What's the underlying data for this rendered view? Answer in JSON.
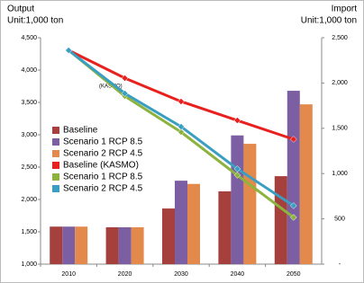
{
  "chart_data": {
    "type": "bar",
    "y_title": "Output",
    "y_unit": "Unit:1,000 ton",
    "y2_title": "Import",
    "y2_unit": "Unit:1,000 ton",
    "annotation": "(KASMO)",
    "categories": [
      "2010",
      "2020",
      "2030",
      "2040",
      "2050"
    ],
    "ylim": [
      1000,
      4500
    ],
    "yticks": [
      {
        "value": 1000,
        "label": "1,000"
      },
      {
        "value": 1500,
        "label": "1,500"
      },
      {
        "value": 2000,
        "label": "2,000"
      },
      {
        "value": 2500,
        "label": "2,500"
      },
      {
        "value": 3000,
        "label": "3,000"
      },
      {
        "value": 3500,
        "label": "3,500"
      },
      {
        "value": 4000,
        "label": "4,000"
      },
      {
        "value": 4500,
        "label": "4,500"
      }
    ],
    "y2lim": [
      0,
      2500
    ],
    "y2ticks": [
      {
        "value": 0,
        "label": "-"
      },
      500,
      {
        "value": 1000,
        "label": "1,000"
      },
      {
        "value": 1500,
        "label": "1,500"
      },
      {
        "value": 2000,
        "label": "2,000"
      },
      {
        "value": 2500,
        "label": "2,500"
      }
    ],
    "legend": "left",
    "series": [
      {
        "name": "Baseline",
        "type": "bar",
        "color": "#a5403d",
        "values": [
          1580,
          1570,
          1860,
          2125,
          2360
        ]
      },
      {
        "name": "Scenario 1 RCP 8.5",
        "type": "bar",
        "color": "#7b5fa2",
        "values": [
          1580,
          1570,
          2290,
          2990,
          3680
        ]
      },
      {
        "name": "Scenario 2 RCP 4.5",
        "type": "bar",
        "color": "#e2894b",
        "values": [
          1580,
          1570,
          2240,
          2860,
          3470
        ]
      },
      {
        "name": "Baseline (KASMO)",
        "type": "line",
        "axis": "y2",
        "color": "#e8201e",
        "values": [
          2361,
          2054,
          1796,
          1587,
          1379
        ]
      },
      {
        "name": "Scenario 1 RCP 8.5",
        "type": "line",
        "axis": "y2",
        "color": "#8db33f",
        "values": [
          2361,
          1855,
          1458,
          982,
          516
        ]
      },
      {
        "name": "Scenario 2 RCP 4.5",
        "type": "line",
        "axis": "y2",
        "color": "#3a9ec2",
        "values": [
          2361,
          1885,
          1518,
          1052,
          645
        ]
      }
    ]
  }
}
